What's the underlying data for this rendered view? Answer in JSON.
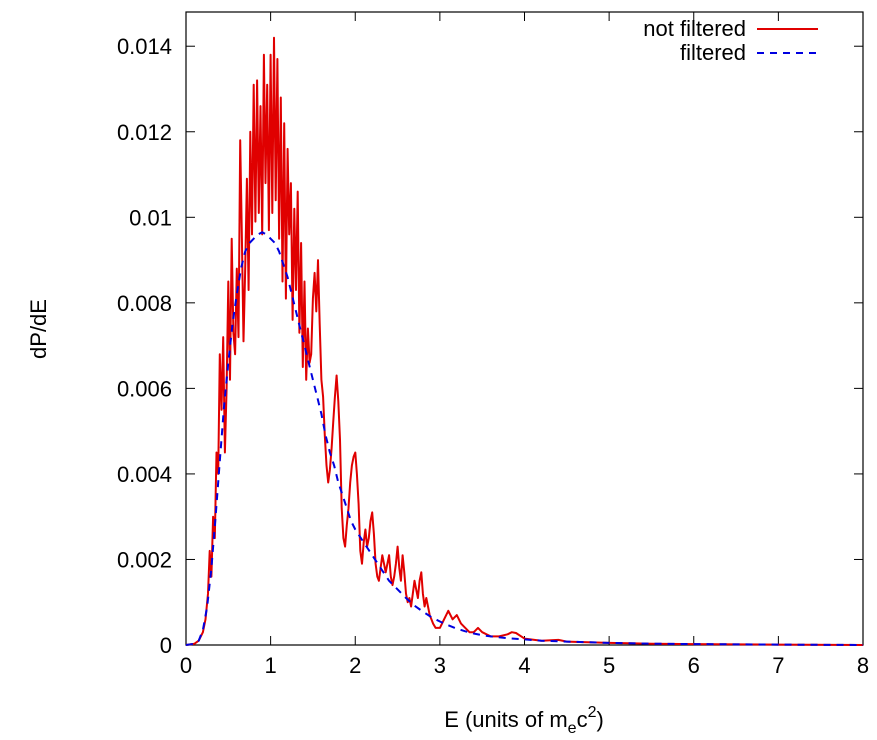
{
  "chart_data": {
    "type": "line",
    "xlabel": "E (units of m",
    "xlabel_sub": "e",
    "xlabel_mid": "c",
    "xlabel_sup": "2",
    "xlabel_end": ")",
    "ylabel": "dP/dE",
    "xlim": [
      0,
      8
    ],
    "ylim": [
      0,
      0.0148
    ],
    "x_ticks": [
      0,
      1,
      2,
      3,
      4,
      5,
      6,
      7,
      8
    ],
    "x_tick_labels": [
      "0",
      "1",
      "2",
      "3",
      "4",
      "5",
      "6",
      "7",
      "8"
    ],
    "y_ticks": [
      0,
      0.002,
      0.004,
      0.006,
      0.008,
      0.01,
      0.012,
      0.014
    ],
    "y_tick_labels": [
      "0",
      "0.002",
      "0.004",
      "0.006",
      "0.008",
      "0.01",
      "0.012",
      "0.014"
    ],
    "grid": false,
    "legend_position": "top-right",
    "series": [
      {
        "name": "not filtered",
        "color": "#e00000",
        "style": "solid",
        "points": [
          [
            0.0,
            0.0
          ],
          [
            0.1,
            3e-05
          ],
          [
            0.15,
            0.0001
          ],
          [
            0.2,
            0.0003
          ],
          [
            0.23,
            0.0006
          ],
          [
            0.26,
            0.0012
          ],
          [
            0.28,
            0.0022
          ],
          [
            0.3,
            0.0016
          ],
          [
            0.32,
            0.003
          ],
          [
            0.34,
            0.0025
          ],
          [
            0.36,
            0.0045
          ],
          [
            0.38,
            0.004
          ],
          [
            0.4,
            0.0068
          ],
          [
            0.42,
            0.0055
          ],
          [
            0.44,
            0.0072
          ],
          [
            0.46,
            0.0045
          ],
          [
            0.48,
            0.006
          ],
          [
            0.5,
            0.0085
          ],
          [
            0.52,
            0.0062
          ],
          [
            0.54,
            0.0095
          ],
          [
            0.56,
            0.0073
          ],
          [
            0.58,
            0.0068
          ],
          [
            0.6,
            0.0088
          ],
          [
            0.62,
            0.0072
          ],
          [
            0.64,
            0.0118
          ],
          [
            0.66,
            0.0095
          ],
          [
            0.68,
            0.0071
          ],
          [
            0.7,
            0.0088
          ],
          [
            0.72,
            0.0109
          ],
          [
            0.74,
            0.0083
          ],
          [
            0.76,
            0.012
          ],
          [
            0.78,
            0.0096
          ],
          [
            0.8,
            0.0131
          ],
          [
            0.82,
            0.0099
          ],
          [
            0.84,
            0.0132
          ],
          [
            0.86,
            0.0101
          ],
          [
            0.88,
            0.0126
          ],
          [
            0.9,
            0.0096
          ],
          [
            0.92,
            0.0138
          ],
          [
            0.94,
            0.0108
          ],
          [
            0.96,
            0.0131
          ],
          [
            0.98,
            0.0097
          ],
          [
            1.0,
            0.0138
          ],
          [
            1.02,
            0.0101
          ],
          [
            1.04,
            0.0142
          ],
          [
            1.06,
            0.0104
          ],
          [
            1.08,
            0.0137
          ],
          [
            1.1,
            0.0095
          ],
          [
            1.12,
            0.0128
          ],
          [
            1.14,
            0.0085
          ],
          [
            1.16,
            0.0122
          ],
          [
            1.18,
            0.0081
          ],
          [
            1.2,
            0.0116
          ],
          [
            1.22,
            0.0096
          ],
          [
            1.24,
            0.0108
          ],
          [
            1.26,
            0.0076
          ],
          [
            1.28,
            0.0102
          ],
          [
            1.3,
            0.0083
          ],
          [
            1.32,
            0.0106
          ],
          [
            1.34,
            0.0073
          ],
          [
            1.36,
            0.0094
          ],
          [
            1.38,
            0.0065
          ],
          [
            1.4,
            0.0085
          ],
          [
            1.42,
            0.0062
          ],
          [
            1.44,
            0.0074
          ],
          [
            1.46,
            0.0066
          ],
          [
            1.48,
            0.0068
          ],
          [
            1.5,
            0.0081
          ],
          [
            1.52,
            0.0087
          ],
          [
            1.54,
            0.0078
          ],
          [
            1.56,
            0.009
          ],
          [
            1.58,
            0.0075
          ],
          [
            1.6,
            0.0062
          ],
          [
            1.62,
            0.0058
          ],
          [
            1.64,
            0.0049
          ],
          [
            1.66,
            0.0042
          ],
          [
            1.68,
            0.0038
          ],
          [
            1.7,
            0.0041
          ],
          [
            1.72,
            0.0046
          ],
          [
            1.74,
            0.0052
          ],
          [
            1.76,
            0.0058
          ],
          [
            1.78,
            0.0063
          ],
          [
            1.8,
            0.0057
          ],
          [
            1.82,
            0.0048
          ],
          [
            1.84,
            0.0032
          ],
          [
            1.86,
            0.0025
          ],
          [
            1.88,
            0.0023
          ],
          [
            1.9,
            0.0028
          ],
          [
            1.92,
            0.0032
          ],
          [
            1.94,
            0.0038
          ],
          [
            1.96,
            0.0042
          ],
          [
            1.98,
            0.0044
          ],
          [
            2.0,
            0.0045
          ],
          [
            2.02,
            0.004
          ],
          [
            2.04,
            0.0033
          ],
          [
            2.06,
            0.0022
          ],
          [
            2.08,
            0.0019
          ],
          [
            2.1,
            0.0024
          ],
          [
            2.12,
            0.0027
          ],
          [
            2.14,
            0.0023
          ],
          [
            2.16,
            0.0025
          ],
          [
            2.18,
            0.0029
          ],
          [
            2.2,
            0.0031
          ],
          [
            2.22,
            0.0026
          ],
          [
            2.24,
            0.0019
          ],
          [
            2.26,
            0.0016
          ],
          [
            2.28,
            0.0015
          ],
          [
            2.3,
            0.0018
          ],
          [
            2.32,
            0.0021
          ],
          [
            2.34,
            0.0019
          ],
          [
            2.36,
            0.0017
          ],
          [
            2.38,
            0.0019
          ],
          [
            2.4,
            0.0021
          ],
          [
            2.42,
            0.0016
          ],
          [
            2.44,
            0.0014
          ],
          [
            2.46,
            0.0016
          ],
          [
            2.48,
            0.0019
          ],
          [
            2.5,
            0.0023
          ],
          [
            2.52,
            0.0018
          ],
          [
            2.54,
            0.0015
          ],
          [
            2.56,
            0.0021
          ],
          [
            2.58,
            0.0017
          ],
          [
            2.6,
            0.0012
          ],
          [
            2.62,
            0.001
          ],
          [
            2.64,
            0.0011
          ],
          [
            2.66,
            0.0009
          ],
          [
            2.68,
            0.0012
          ],
          [
            2.7,
            0.0015
          ],
          [
            2.72,
            0.0013
          ],
          [
            2.74,
            0.0011
          ],
          [
            2.76,
            0.0015
          ],
          [
            2.78,
            0.0017
          ],
          [
            2.8,
            0.0012
          ],
          [
            2.82,
            0.0009
          ],
          [
            2.84,
            0.0011
          ],
          [
            2.86,
            0.0009
          ],
          [
            2.88,
            0.0007
          ],
          [
            2.9,
            0.0006
          ],
          [
            2.92,
            0.0005
          ],
          [
            2.95,
            0.0004
          ],
          [
            3.0,
            0.0004
          ],
          [
            3.05,
            0.0006
          ],
          [
            3.1,
            0.0008
          ],
          [
            3.15,
            0.0006
          ],
          [
            3.2,
            0.0007
          ],
          [
            3.25,
            0.0005
          ],
          [
            3.3,
            0.0004
          ],
          [
            3.35,
            0.0003
          ],
          [
            3.4,
            0.0003
          ],
          [
            3.45,
            0.0004
          ],
          [
            3.5,
            0.0003
          ],
          [
            3.6,
            0.0002
          ],
          [
            3.7,
            0.0002
          ],
          [
            3.8,
            0.00025
          ],
          [
            3.85,
            0.0003
          ],
          [
            3.9,
            0.00028
          ],
          [
            4.0,
            0.00015
          ],
          [
            4.2,
            0.0001
          ],
          [
            4.4,
            0.00012
          ],
          [
            4.5,
            8e-05
          ],
          [
            4.8,
            6e-05
          ],
          [
            5.0,
            5e-05
          ],
          [
            5.5,
            3e-05
          ],
          [
            6.0,
            2e-05
          ],
          [
            7.0,
            1e-05
          ],
          [
            8.0,
            0.0
          ]
        ]
      },
      {
        "name": "filtered",
        "color": "#0000e0",
        "style": "dashed",
        "points": [
          [
            0.0,
            0.0
          ],
          [
            0.1,
            3e-05
          ],
          [
            0.15,
            0.0001
          ],
          [
            0.2,
            0.00035
          ],
          [
            0.25,
            0.0009
          ],
          [
            0.3,
            0.0018
          ],
          [
            0.35,
            0.003
          ],
          [
            0.4,
            0.0043
          ],
          [
            0.45,
            0.0056
          ],
          [
            0.5,
            0.0066
          ],
          [
            0.55,
            0.0075
          ],
          [
            0.6,
            0.0082
          ],
          [
            0.65,
            0.0088
          ],
          [
            0.7,
            0.0092
          ],
          [
            0.75,
            0.0094
          ],
          [
            0.8,
            0.0095
          ],
          [
            0.85,
            0.0096
          ],
          [
            0.9,
            0.00965
          ],
          [
            0.95,
            0.0096
          ],
          [
            1.0,
            0.0095
          ],
          [
            1.05,
            0.0094
          ],
          [
            1.1,
            0.0092
          ],
          [
            1.15,
            0.0089
          ],
          [
            1.2,
            0.0086
          ],
          [
            1.25,
            0.0082
          ],
          [
            1.3,
            0.0078
          ],
          [
            1.35,
            0.0074
          ],
          [
            1.4,
            0.007
          ],
          [
            1.45,
            0.0066
          ],
          [
            1.5,
            0.0062
          ],
          [
            1.55,
            0.0058
          ],
          [
            1.6,
            0.0054
          ],
          [
            1.65,
            0.0049
          ],
          [
            1.7,
            0.0045
          ],
          [
            1.75,
            0.0042
          ],
          [
            1.8,
            0.0038
          ],
          [
            1.85,
            0.0035
          ],
          [
            1.9,
            0.0032
          ],
          [
            1.95,
            0.0029
          ],
          [
            2.0,
            0.0027
          ],
          [
            2.1,
            0.0024
          ],
          [
            2.2,
            0.0021
          ],
          [
            2.3,
            0.0018
          ],
          [
            2.4,
            0.0015
          ],
          [
            2.5,
            0.0013
          ],
          [
            2.6,
            0.0011
          ],
          [
            2.7,
            0.00092
          ],
          [
            2.8,
            0.00078
          ],
          [
            2.9,
            0.00065
          ],
          [
            3.0,
            0.00055
          ],
          [
            3.1,
            0.00046
          ],
          [
            3.2,
            0.00038
          ],
          [
            3.3,
            0.00032
          ],
          [
            3.4,
            0.00027
          ],
          [
            3.5,
            0.00023
          ],
          [
            3.6,
            0.0002
          ],
          [
            3.8,
            0.00016
          ],
          [
            4.0,
            0.00013
          ],
          [
            4.2,
            0.0001
          ],
          [
            4.5,
            8e-05
          ],
          [
            5.0,
            5e-05
          ],
          [
            5.5,
            3e-05
          ],
          [
            6.0,
            2e-05
          ],
          [
            7.0,
            1e-05
          ],
          [
            8.0,
            0.0
          ]
        ]
      }
    ]
  }
}
